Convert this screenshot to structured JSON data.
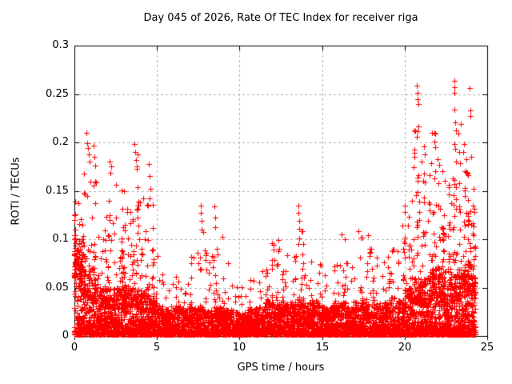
{
  "chart_data": {
    "type": "scatter",
    "title": "Day 045 of 2026, Rate Of TEC Index for receiver riga",
    "xlabel": "GPS time / hours",
    "ylabel": "ROTI / TECUs",
    "xlim": [
      0,
      25
    ],
    "ylim": [
      0,
      0.3
    ],
    "xticks": [
      0,
      5,
      10,
      15,
      20,
      25
    ],
    "xtick_labels": [
      "0",
      "5",
      "10",
      "15",
      "20",
      "25"
    ],
    "yticks": [
      0,
      0.05,
      0.1,
      0.15,
      0.2,
      0.25,
      0.3
    ],
    "ytick_labels": [
      "0",
      "0.05",
      "0.1",
      "0.15",
      "0.2",
      "0.25",
      "0.3"
    ],
    "grid": "dashed",
    "legend": "none",
    "marker": {
      "shape": "plus",
      "size": 7,
      "color": "#ff0000"
    },
    "style": {
      "marker_color": "#ff0000",
      "grid_color": "#b0b0b0",
      "frame_color": "#000000",
      "background": "#ffffff",
      "text_color": "#000000"
    },
    "data_start_hour": 0,
    "data_end_hour": 24.3,
    "envelope_bins": {
      "description": "dense scatter of ROTI values vs GPS time; per 0.5-hour bin: [top of solid dense band (TECU), top of burst/spike region (TECU), relative burst point count]",
      "bin_hours": 0.5,
      "start_hour": 0,
      "bins": [
        [
          0.1,
          0.148,
          60
        ],
        [
          0.07,
          0.175,
          45
        ],
        [
          0.06,
          0.185,
          40
        ],
        [
          0.05,
          0.125,
          35
        ],
        [
          0.05,
          0.18,
          40
        ],
        [
          0.055,
          0.155,
          45
        ],
        [
          0.05,
          0.135,
          40
        ],
        [
          0.05,
          0.19,
          45
        ],
        [
          0.045,
          0.145,
          35
        ],
        [
          0.04,
          0.175,
          30
        ],
        [
          0.03,
          0.08,
          18
        ],
        [
          0.028,
          0.06,
          14
        ],
        [
          0.03,
          0.068,
          16
        ],
        [
          0.028,
          0.058,
          14
        ],
        [
          0.03,
          0.09,
          16
        ],
        [
          0.03,
          0.12,
          18
        ],
        [
          0.03,
          0.09,
          16
        ],
        [
          0.03,
          0.115,
          18
        ],
        [
          0.028,
          0.075,
          14
        ],
        [
          0.025,
          0.055,
          12
        ],
        [
          0.025,
          0.06,
          12
        ],
        [
          0.028,
          0.065,
          14
        ],
        [
          0.03,
          0.07,
          16
        ],
        [
          0.035,
          0.095,
          22
        ],
        [
          0.035,
          0.105,
          22
        ],
        [
          0.035,
          0.09,
          20
        ],
        [
          0.035,
          0.085,
          20
        ],
        [
          0.04,
          0.12,
          24
        ],
        [
          0.035,
          0.08,
          18
        ],
        [
          0.035,
          0.085,
          18
        ],
        [
          0.03,
          0.07,
          16
        ],
        [
          0.035,
          0.085,
          18
        ],
        [
          0.035,
          0.105,
          20
        ],
        [
          0.03,
          0.08,
          16
        ],
        [
          0.035,
          0.11,
          20
        ],
        [
          0.035,
          0.105,
          20
        ],
        [
          0.035,
          0.085,
          18
        ],
        [
          0.035,
          0.08,
          18
        ],
        [
          0.04,
          0.09,
          20
        ],
        [
          0.04,
          0.115,
          24
        ],
        [
          0.05,
          0.15,
          35
        ],
        [
          0.06,
          0.22,
          45
        ],
        [
          0.06,
          0.2,
          45
        ],
        [
          0.07,
          0.21,
          50
        ],
        [
          0.07,
          0.185,
          50
        ],
        [
          0.06,
          0.17,
          45
        ],
        [
          0.07,
          0.22,
          50
        ],
        [
          0.08,
          0.2,
          55
        ],
        [
          0.07,
          0.165,
          40
        ]
      ]
    },
    "outliers": [
      [
        0.72,
        0.21
      ],
      [
        0.78,
        0.199
      ],
      [
        0.8,
        0.194
      ],
      [
        0.85,
        0.188
      ],
      [
        0.9,
        0.18
      ],
      [
        1.15,
        0.197
      ],
      [
        1.2,
        0.185
      ],
      [
        1.25,
        0.176
      ],
      [
        2.15,
        0.18
      ],
      [
        2.2,
        0.169
      ],
      [
        2.5,
        0.156
      ],
      [
        3.0,
        0.15
      ],
      [
        3.65,
        0.198
      ],
      [
        3.7,
        0.19
      ],
      [
        3.72,
        0.182
      ],
      [
        3.78,
        0.173
      ],
      [
        4.5,
        0.178
      ],
      [
        4.55,
        0.165
      ],
      [
        4.6,
        0.152
      ],
      [
        5.05,
        0.083
      ],
      [
        7.65,
        0.135
      ],
      [
        7.66,
        0.127
      ],
      [
        7.7,
        0.119
      ],
      [
        7.72,
        0.11
      ],
      [
        8.5,
        0.134
      ],
      [
        8.52,
        0.122
      ],
      [
        8.55,
        0.112
      ],
      [
        8.6,
        0.09
      ],
      [
        9.3,
        0.075
      ],
      [
        11.95,
        0.096
      ],
      [
        12.05,
        0.089
      ],
      [
        13.55,
        0.135
      ],
      [
        13.58,
        0.127
      ],
      [
        13.6,
        0.119
      ],
      [
        13.62,
        0.111
      ],
      [
        13.6,
        0.101
      ],
      [
        16.2,
        0.105
      ],
      [
        17.2,
        0.108
      ],
      [
        17.8,
        0.104
      ],
      [
        19.3,
        0.089
      ],
      [
        20.6,
        0.212
      ],
      [
        20.75,
        0.259
      ],
      [
        20.78,
        0.251
      ],
      [
        20.8,
        0.245
      ],
      [
        20.82,
        0.24
      ],
      [
        21.15,
        0.196
      ],
      [
        21.2,
        0.188
      ],
      [
        21.78,
        0.21
      ],
      [
        21.82,
        0.201
      ],
      [
        21.85,
        0.195
      ],
      [
        22.3,
        0.17
      ],
      [
        23.0,
        0.264
      ],
      [
        23.01,
        0.257
      ],
      [
        23.02,
        0.251
      ],
      [
        23.02,
        0.234
      ],
      [
        23.05,
        0.221
      ],
      [
        23.3,
        0.19
      ],
      [
        23.95,
        0.256
      ],
      [
        23.96,
        0.233
      ],
      [
        24.0,
        0.227
      ],
      [
        24.05,
        0.185
      ]
    ]
  }
}
